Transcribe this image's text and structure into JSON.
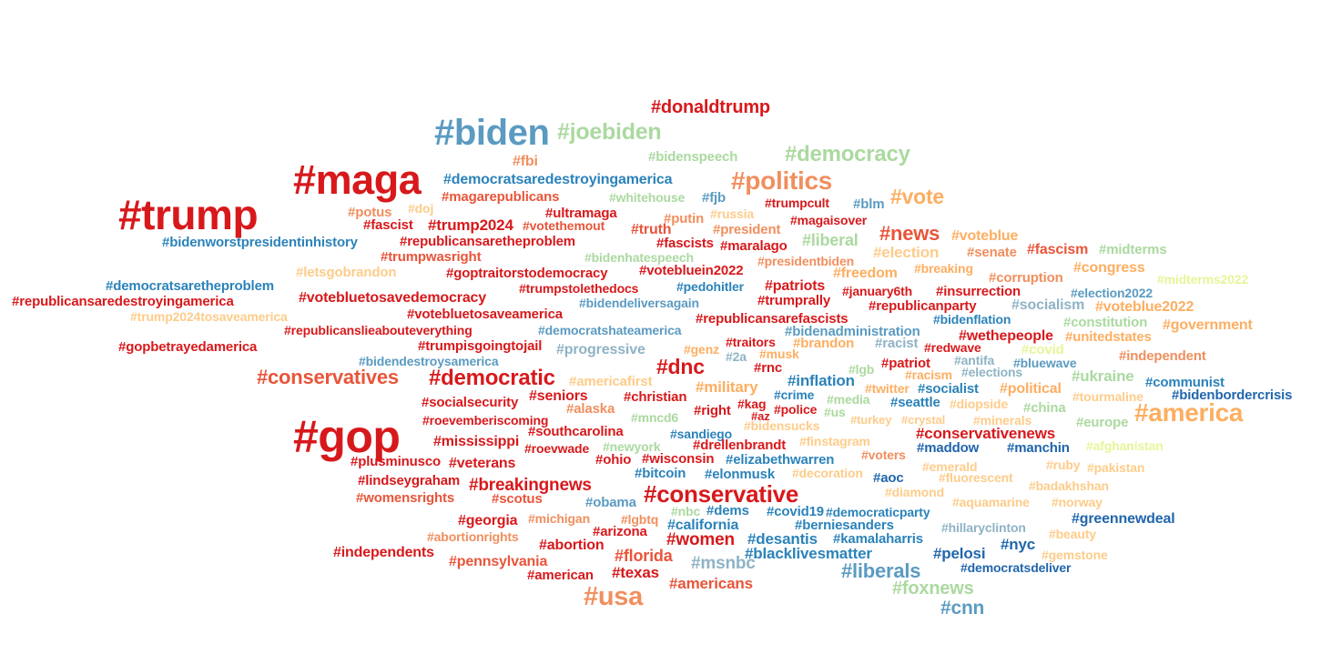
{
  "palette": {
    "red": "#d7191c",
    "orange_red": "#e8553a",
    "salmon": "#f08f5f",
    "peach": "#fdae61",
    "light_peach": "#fdcc8a",
    "pale_yellow": "#e6f598",
    "light_green": "#abd9a0",
    "gray_blue": "#8fb3c5",
    "steel_blue": "#5b9bc1",
    "blue": "#2b83ba",
    "dark_blue": "#2166ac"
  },
  "words": [
    {
      "text": "#donaldtrump",
      "c": "red"
    },
    {
      "text": "#biden",
      "c": "steel_blue"
    },
    {
      "text": "#joebiden",
      "c": "light_green"
    },
    {
      "text": "#bidenspeech",
      "c": "light_green"
    },
    {
      "text": "#democracy",
      "c": "light_green"
    },
    {
      "text": "#maga",
      "c": "red"
    },
    {
      "text": "#fbi",
      "c": "salmon"
    },
    {
      "text": "#democratsaredestroyingamerica",
      "c": "blue"
    },
    {
      "text": "#politics",
      "c": "salmon"
    },
    {
      "text": "#trump",
      "c": "red"
    },
    {
      "text": "#magarepublicans",
      "c": "orange_red"
    },
    {
      "text": "#whitehouse",
      "c": "light_green"
    },
    {
      "text": "#fjb",
      "c": "steel_blue"
    },
    {
      "text": "#trumpcult",
      "c": "red"
    },
    {
      "text": "#blm",
      "c": "steel_blue"
    },
    {
      "text": "#vote",
      "c": "peach"
    },
    {
      "text": "#potus",
      "c": "salmon"
    },
    {
      "text": "#doj",
      "c": "light_peach"
    },
    {
      "text": "#ultramaga",
      "c": "red"
    },
    {
      "text": "#putin",
      "c": "salmon"
    },
    {
      "text": "#russia",
      "c": "light_peach"
    },
    {
      "text": "#magaisover",
      "c": "red"
    },
    {
      "text": "#fascist",
      "c": "red"
    },
    {
      "text": "#trump2024",
      "c": "red"
    },
    {
      "text": "#votethemout",
      "c": "orange_red"
    },
    {
      "text": "#truth",
      "c": "orange_red"
    },
    {
      "text": "#president",
      "c": "salmon"
    },
    {
      "text": "#news",
      "c": "orange_red"
    },
    {
      "text": "#voteblue",
      "c": "peach"
    },
    {
      "text": "#bidenworstpresidentinhistory",
      "c": "blue"
    },
    {
      "text": "#republicansaretheproblem",
      "c": "red"
    },
    {
      "text": "#fascists",
      "c": "red"
    },
    {
      "text": "#maralago",
      "c": "red"
    },
    {
      "text": "#liberal",
      "c": "light_green"
    },
    {
      "text": "#election",
      "c": "light_peach"
    },
    {
      "text": "#senate",
      "c": "salmon"
    },
    {
      "text": "#fascism",
      "c": "orange_red"
    },
    {
      "text": "#midterms",
      "c": "light_green"
    },
    {
      "text": "#trumpwasright",
      "c": "orange_red"
    },
    {
      "text": "#bidenhatespeech",
      "c": "light_green"
    },
    {
      "text": "#presidentbiden",
      "c": "salmon"
    },
    {
      "text": "#breaking",
      "c": "peach"
    },
    {
      "text": "#congress",
      "c": "peach"
    },
    {
      "text": "#letsgobrandon",
      "c": "light_peach"
    },
    {
      "text": "#goptraitorstodemocracy",
      "c": "red"
    },
    {
      "text": "#votebluein2022",
      "c": "red"
    },
    {
      "text": "#freedom",
      "c": "peach"
    },
    {
      "text": "#corruption",
      "c": "salmon"
    },
    {
      "text": "#midterms2022",
      "c": "pale_yellow"
    },
    {
      "text": "#democratsaretheproblem",
      "c": "blue"
    },
    {
      "text": "#trumpstolethedocs",
      "c": "red"
    },
    {
      "text": "#pedohitler",
      "c": "blue"
    },
    {
      "text": "#patriots",
      "c": "red"
    },
    {
      "text": "#january6th",
      "c": "red"
    },
    {
      "text": "#insurrection",
      "c": "red"
    },
    {
      "text": "#election2022",
      "c": "steel_blue"
    },
    {
      "text": "#republicansaredestroyingamerica",
      "c": "red"
    },
    {
      "text": "#votebluetosavedemocracy",
      "c": "red"
    },
    {
      "text": "#bidendeliversagain",
      "c": "steel_blue"
    },
    {
      "text": "#trumprally",
      "c": "red"
    },
    {
      "text": "#republicanparty",
      "c": "red"
    },
    {
      "text": "#socialism",
      "c": "gray_blue"
    },
    {
      "text": "#voteblue2022",
      "c": "peach"
    },
    {
      "text": "#trump2024tosaveamerica",
      "c": "light_peach"
    },
    {
      "text": "#votebluetosaveamerica",
      "c": "red"
    },
    {
      "text": "#republicansarefascists",
      "c": "red"
    },
    {
      "text": "#bidenflation",
      "c": "blue"
    },
    {
      "text": "#constitution",
      "c": "light_green"
    },
    {
      "text": "#government",
      "c": "peach"
    },
    {
      "text": "#republicanslieabouteverything",
      "c": "red"
    },
    {
      "text": "#democratshateamerica",
      "c": "steel_blue"
    },
    {
      "text": "#bidenadministration",
      "c": "steel_blue"
    },
    {
      "text": "#wethepeople",
      "c": "red"
    },
    {
      "text": "#unitedstates",
      "c": "peach"
    },
    {
      "text": "#gopbetrayedamerica",
      "c": "red"
    },
    {
      "text": "#trumpisgoingtojail",
      "c": "red"
    },
    {
      "text": "#progressive",
      "c": "gray_blue"
    },
    {
      "text": "#traitors",
      "c": "red"
    },
    {
      "text": "#brandon",
      "c": "peach"
    },
    {
      "text": "#racist",
      "c": "gray_blue"
    },
    {
      "text": "#redwave",
      "c": "red"
    },
    {
      "text": "#covid",
      "c": "pale_yellow"
    },
    {
      "text": "#genz",
      "c": "peach"
    },
    {
      "text": "#2a",
      "c": "gray_blue"
    },
    {
      "text": "#musk",
      "c": "peach"
    },
    {
      "text": "#antifa",
      "c": "gray_blue"
    },
    {
      "text": "#independent",
      "c": "salmon"
    },
    {
      "text": "#bidendestroysamerica",
      "c": "steel_blue"
    },
    {
      "text": "#dnc",
      "c": "red"
    },
    {
      "text": "#rnc",
      "c": "red"
    },
    {
      "text": "#patriot",
      "c": "red"
    },
    {
      "text": "#bluewave",
      "c": "steel_blue"
    },
    {
      "text": "#conservatives",
      "c": "orange_red"
    },
    {
      "text": "#democratic",
      "c": "red"
    },
    {
      "text": "#americafirst",
      "c": "light_peach"
    },
    {
      "text": "#lgb",
      "c": "light_green"
    },
    {
      "text": "#racism",
      "c": "peach"
    },
    {
      "text": "#elections",
      "c": "gray_blue"
    },
    {
      "text": "#ukraine",
      "c": "light_green"
    },
    {
      "text": "#inflation",
      "c": "blue"
    },
    {
      "text": "#military",
      "c": "peach"
    },
    {
      "text": "#twitter",
      "c": "peach"
    },
    {
      "text": "#socialist",
      "c": "blue"
    },
    {
      "text": "#political",
      "c": "peach"
    },
    {
      "text": "#communist",
      "c": "blue"
    },
    {
      "text": "#seniors",
      "c": "red"
    },
    {
      "text": "#christian",
      "c": "red"
    },
    {
      "text": "#crime",
      "c": "blue"
    },
    {
      "text": "#media",
      "c": "light_green"
    },
    {
      "text": "#tourmaline",
      "c": "light_peach"
    },
    {
      "text": "#bidenbordercrisis",
      "c": "dark_blue"
    },
    {
      "text": "#socialsecurity",
      "c": "red"
    },
    {
      "text": "#alaska",
      "c": "salmon"
    },
    {
      "text": "#kag",
      "c": "red"
    },
    {
      "text": "#seattle",
      "c": "blue"
    },
    {
      "text": "#diopside",
      "c": "light_peach"
    },
    {
      "text": "#china",
      "c": "light_green"
    },
    {
      "text": "#right",
      "c": "red"
    },
    {
      "text": "#police",
      "c": "red"
    },
    {
      "text": "#az",
      "c": "red"
    },
    {
      "text": "#us",
      "c": "light_green"
    },
    {
      "text": "#america",
      "c": "peach"
    },
    {
      "text": "#roevemberiscoming",
      "c": "red"
    },
    {
      "text": "#mncd6",
      "c": "light_green"
    },
    {
      "text": "#turkey",
      "c": "light_peach"
    },
    {
      "text": "#crystal",
      "c": "light_peach"
    },
    {
      "text": "#minerals",
      "c": "light_peach"
    },
    {
      "text": "#europe",
      "c": "light_green"
    },
    {
      "text": "#gop",
      "c": "red"
    },
    {
      "text": "#bidensucks",
      "c": "light_peach"
    },
    {
      "text": "#southcarolina",
      "c": "red"
    },
    {
      "text": "#sandiego",
      "c": "blue"
    },
    {
      "text": "#conservativenews",
      "c": "red"
    },
    {
      "text": "#mississippi",
      "c": "red"
    },
    {
      "text": "#roevwade",
      "c": "red"
    },
    {
      "text": "#newyork",
      "c": "light_green"
    },
    {
      "text": "#drellenbrandt",
      "c": "red"
    },
    {
      "text": "#finstagram",
      "c": "light_peach"
    },
    {
      "text": "#maddow",
      "c": "dark_blue"
    },
    {
      "text": "#manchin",
      "c": "dark_blue"
    },
    {
      "text": "#afghanistan",
      "c": "pale_yellow"
    },
    {
      "text": "#voters",
      "c": "salmon"
    },
    {
      "text": "#plusminusco",
      "c": "red"
    },
    {
      "text": "#veterans",
      "c": "red"
    },
    {
      "text": "#ohio",
      "c": "red"
    },
    {
      "text": "#wisconsin",
      "c": "red"
    },
    {
      "text": "#elizabethwarren",
      "c": "blue"
    },
    {
      "text": "#emerald",
      "c": "light_peach"
    },
    {
      "text": "#ruby",
      "c": "light_peach"
    },
    {
      "text": "#pakistan",
      "c": "light_peach"
    },
    {
      "text": "#bitcoin",
      "c": "blue"
    },
    {
      "text": "#elonmusk",
      "c": "blue"
    },
    {
      "text": "#decoration",
      "c": "light_peach"
    },
    {
      "text": "#aoc",
      "c": "dark_blue"
    },
    {
      "text": "#fluorescent",
      "c": "light_peach"
    },
    {
      "text": "#lindseygraham",
      "c": "red"
    },
    {
      "text": "#breakingnews",
      "c": "red"
    },
    {
      "text": "#diamond",
      "c": "light_peach"
    },
    {
      "text": "#badakhshan",
      "c": "light_peach"
    },
    {
      "text": "#womensrights",
      "c": "orange_red"
    },
    {
      "text": "#scotus",
      "c": "orange_red"
    },
    {
      "text": "#obama",
      "c": "steel_blue"
    },
    {
      "text": "#conservative",
      "c": "red"
    },
    {
      "text": "#aquamarine",
      "c": "light_peach"
    },
    {
      "text": "#norway",
      "c": "light_peach"
    },
    {
      "text": "#nbc",
      "c": "light_green"
    },
    {
      "text": "#dems",
      "c": "blue"
    },
    {
      "text": "#covid19",
      "c": "blue"
    },
    {
      "text": "#democraticparty",
      "c": "blue"
    },
    {
      "text": "#georgia",
      "c": "red"
    },
    {
      "text": "#michigan",
      "c": "salmon"
    },
    {
      "text": "#lgbtq",
      "c": "salmon"
    },
    {
      "text": "#california",
      "c": "blue"
    },
    {
      "text": "#berniesanders",
      "c": "blue"
    },
    {
      "text": "#hillaryclinton",
      "c": "gray_blue"
    },
    {
      "text": "#greennewdeal",
      "c": "dark_blue"
    },
    {
      "text": "#arizona",
      "c": "red"
    },
    {
      "text": "#abortionrights",
      "c": "salmon"
    },
    {
      "text": "#beauty",
      "c": "light_peach"
    },
    {
      "text": "#women",
      "c": "red"
    },
    {
      "text": "#desantis",
      "c": "blue"
    },
    {
      "text": "#kamalaharris",
      "c": "blue"
    },
    {
      "text": "#abortion",
      "c": "red"
    },
    {
      "text": "#nyc",
      "c": "dark_blue"
    },
    {
      "text": "#independents",
      "c": "red"
    },
    {
      "text": "#florida",
      "c": "orange_red"
    },
    {
      "text": "#blacklivesmatter",
      "c": "blue"
    },
    {
      "text": "#pelosi",
      "c": "dark_blue"
    },
    {
      "text": "#gemstone",
      "c": "light_peach"
    },
    {
      "text": "#pennsylvania",
      "c": "orange_red"
    },
    {
      "text": "#msnbc",
      "c": "gray_blue"
    },
    {
      "text": "#democratsdeliver",
      "c": "dark_blue"
    },
    {
      "text": "#american",
      "c": "red"
    },
    {
      "text": "#texas",
      "c": "red"
    },
    {
      "text": "#liberals",
      "c": "steel_blue"
    },
    {
      "text": "#americans",
      "c": "orange_red"
    },
    {
      "text": "#foxnews",
      "c": "light_green"
    },
    {
      "text": "#usa",
      "c": "salmon"
    },
    {
      "text": "#cnn",
      "c": "steel_blue"
    }
  ]
}
